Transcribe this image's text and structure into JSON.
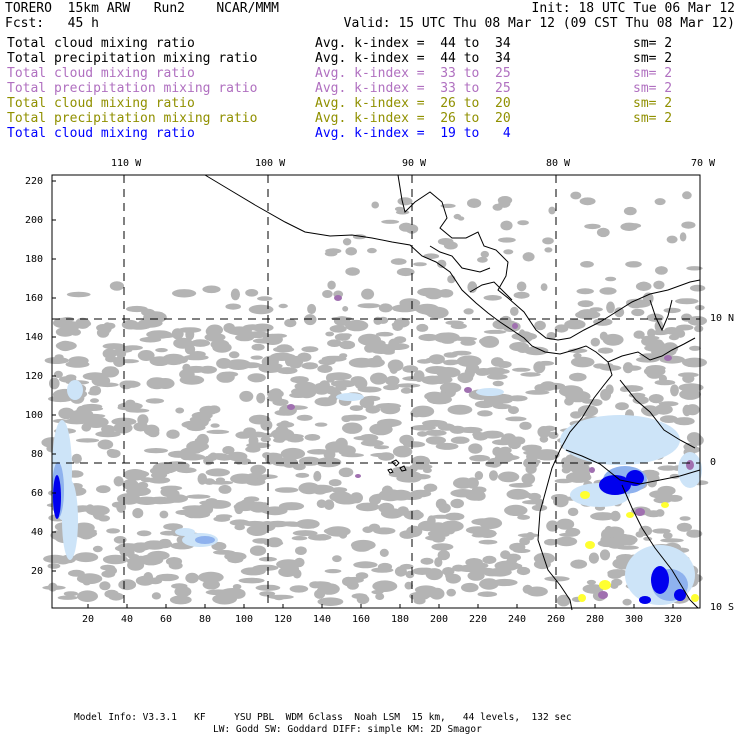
{
  "header": {
    "model": "TORERO  15km ARW   Run2    NCAR/MMM",
    "init": "Init: 18 UTC Tue 06 Mar 12",
    "fcst": "Fcst:   45 h",
    "valid": "Valid: 15 UTC Thu 08 Mar 12 (09 CST Thu 08 Mar 12)"
  },
  "legend": [
    {
      "field": "Total cloud mixing ratio",
      "kindex": "Avg. k-index =  44 to  34",
      "sm": "sm= 2",
      "color": "#000000"
    },
    {
      "field": "Total precipitation mixing ratio",
      "kindex": "Avg. k-index =  44 to  34",
      "sm": "sm= 2",
      "color": "#000000"
    },
    {
      "field": "Total cloud mixing ratio",
      "kindex": "Avg. k-index =  33 to  25",
      "sm": "sm= 2",
      "color": "#b070c0"
    },
    {
      "field": "Total precipitation mixing ratio",
      "kindex": "Avg. k-index =  33 to  25",
      "sm": "sm= 2",
      "color": "#b070c0"
    },
    {
      "field": "Total cloud mixing ratio",
      "kindex": "Avg. k-index =  26 to  20",
      "sm": "sm= 2",
      "color": "#909000"
    },
    {
      "field": "Total precipitation mixing ratio",
      "kindex": "Avg. k-index =  26 to  20",
      "sm": "sm= 2",
      "color": "#909000"
    },
    {
      "field": "Total cloud mixing ratio",
      "kindex": "Avg. k-index =  19 to   4",
      "sm": "sm= 2",
      "color": "#0000ff"
    }
  ],
  "map": {
    "lon_labels": [
      "110 W",
      "100 W",
      "90 W",
      "80 W",
      "70 W"
    ],
    "lat_labels": [
      "10 N",
      "0",
      "10 S"
    ],
    "x_ticks": [
      "20",
      "40",
      "60",
      "80",
      "100",
      "120",
      "140",
      "160",
      "180",
      "200",
      "220",
      "240",
      "260",
      "280",
      "300",
      "320"
    ],
    "y_ticks": [
      "220",
      "200",
      "180",
      "160",
      "140",
      "120",
      "100",
      "80",
      "60",
      "40",
      "20"
    ],
    "colors": {
      "cloud_gray": "#b4b4b4",
      "blue_light": "#cde4f8",
      "blue_mid": "#8fb2ee",
      "blue_deep": "#0000ee",
      "purple": "#a070b0",
      "yellow": "#ffff30",
      "coast": "#000000",
      "grid": "#000000"
    }
  },
  "footer": {
    "line1": "Model Info: V3.3.1   KF     YSU PBL  WDM 6class  Noah LSM  15 km,   44 levels,  132 sec",
    "line2": "LW: Godd SW: Goddard DIFF: simple KM: 2D Smagor"
  }
}
